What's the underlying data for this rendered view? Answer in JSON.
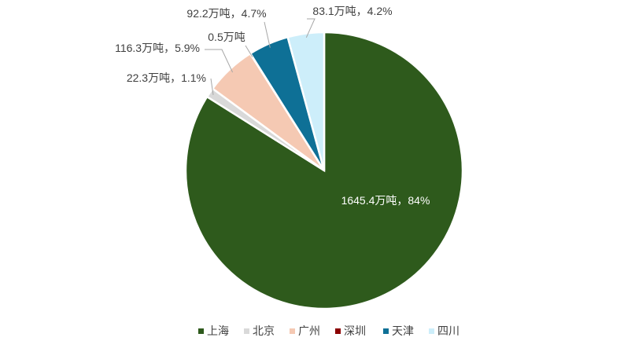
{
  "chart_data": {
    "type": "pie",
    "title": "",
    "legend_position": "bottom",
    "slices": [
      {
        "name": "上海",
        "value": 1645.4,
        "percent": 84,
        "label": "1645.4万吨，84%",
        "color": "#2e5a1c"
      },
      {
        "name": "北京",
        "value": 22.3,
        "percent": 1.1,
        "label": "22.3万吨，1.1%",
        "color": "#d9d9d9"
      },
      {
        "name": "广州",
        "value": 116.3,
        "percent": 5.9,
        "label": "116.3万吨，5.9%",
        "color": "#f5c9b3"
      },
      {
        "name": "深圳",
        "value": 0.5,
        "percent": 0.0,
        "label": "0.5万吨",
        "color": "#8b0000"
      },
      {
        "name": "天津",
        "value": 92.2,
        "percent": 4.7,
        "label": "92.2万吨，4.7%",
        "color": "#0e7096"
      },
      {
        "name": "四川",
        "value": 83.1,
        "percent": 4.2,
        "label": "83.1万吨，4.2%",
        "color": "#cdeefa"
      }
    ]
  }
}
